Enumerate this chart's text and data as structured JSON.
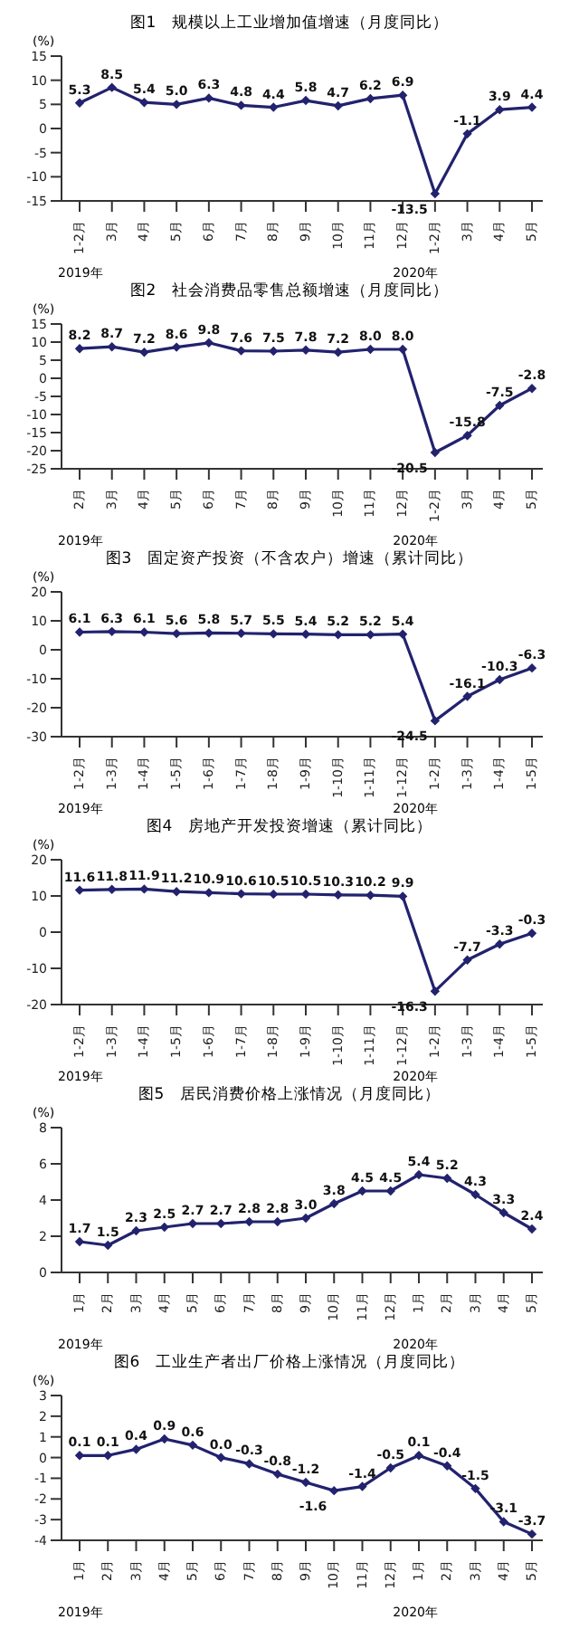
{
  "chart_data": [
    {
      "type": "line",
      "title": "图1　规模以上工业增加值增速（月度同比）",
      "ylabel": "(%)",
      "categories": [
        "1-2月",
        "3月",
        "4月",
        "5月",
        "6月",
        "7月",
        "8月",
        "9月",
        "10月",
        "11月",
        "12月",
        "1-2月",
        "3月",
        "4月",
        "5月"
      ],
      "values": [
        5.3,
        8.5,
        5.4,
        5.0,
        6.3,
        4.8,
        4.4,
        5.8,
        4.7,
        6.2,
        6.9,
        -13.5,
        -1.1,
        3.9,
        4.4
      ],
      "value_labels": [
        "5.3",
        "8.5",
        "5.4",
        "5.0",
        "6.3",
        "4.8",
        "4.4",
        "5.8",
        "4.7",
        "6.2",
        "6.9",
        "-13.5",
        "-1.1",
        "3.9",
        "4.4"
      ],
      "color": "#22226e",
      "ylim": [
        -15,
        15
      ],
      "yticks": [
        -15,
        -10,
        -5,
        0,
        5,
        10,
        15
      ],
      "marker": "diamond",
      "annotations": [
        "2019年",
        "2020年"
      ]
    },
    {
      "type": "line",
      "title": "图2　社会消费品零售总额增速（月度同比）",
      "ylabel": "(%)",
      "categories": [
        "2月",
        "3月",
        "4月",
        "5月",
        "6月",
        "7月",
        "8月",
        "9月",
        "10月",
        "11月",
        "12月",
        "1-2月",
        "3月",
        "4月",
        "5月"
      ],
      "values": [
        8.2,
        8.7,
        7.2,
        8.6,
        9.8,
        7.6,
        7.5,
        7.8,
        7.2,
        8.0,
        8.0,
        -20.5,
        -15.8,
        -7.5,
        -2.8
      ],
      "value_labels": [
        "8.2",
        "8.7",
        "7.2",
        "8.6",
        "9.8",
        "7.6",
        "7.5",
        "7.8",
        "7.2",
        "8.0",
        "8.0",
        "-20.5",
        "-15.8",
        "-7.5",
        "-2.8"
      ],
      "color": "#22226e",
      "ylim": [
        -25,
        15
      ],
      "yticks": [
        -25,
        -20,
        -15,
        -10,
        -5,
        0,
        5,
        10,
        15
      ],
      "marker": "diamond",
      "annotations": [
        "2019年",
        "2020年"
      ]
    },
    {
      "type": "line",
      "title": "图3　固定资产投资（不含农户）增速（累计同比）",
      "ylabel": "(%)",
      "categories": [
        "1-2月",
        "1-3月",
        "1-4月",
        "1-5月",
        "1-6月",
        "1-7月",
        "1-8月",
        "1-9月",
        "1-10月",
        "1-11月",
        "1-12月",
        "1-2月",
        "1-3月",
        "1-4月",
        "1-5月"
      ],
      "values": [
        6.1,
        6.3,
        6.1,
        5.6,
        5.8,
        5.7,
        5.5,
        5.4,
        5.2,
        5.2,
        5.4,
        -24.5,
        -16.1,
        -10.3,
        -6.3
      ],
      "value_labels": [
        "6.1",
        "6.3",
        "6.1",
        "5.6",
        "5.8",
        "5.7",
        "5.5",
        "5.4",
        "5.2",
        "5.2",
        "5.4",
        "-24.5",
        "-16.1",
        "-10.3",
        "-6.3"
      ],
      "color": "#22226e",
      "ylim": [
        -30,
        20
      ],
      "yticks": [
        -30,
        -20,
        -10,
        0,
        10,
        20
      ],
      "marker": "diamond",
      "annotations": [
        "2019年",
        "2020年"
      ]
    },
    {
      "type": "line",
      "title": "图4　房地产开发投资增速（累计同比）",
      "ylabel": "(%)",
      "categories": [
        "1-2月",
        "1-3月",
        "1-4月",
        "1-5月",
        "1-6月",
        "1-7月",
        "1-8月",
        "1-9月",
        "1-10月",
        "1-11月",
        "1-12月",
        "1-2月",
        "1-3月",
        "1-4月",
        "1-5月"
      ],
      "values": [
        11.6,
        11.8,
        11.9,
        11.2,
        10.9,
        10.6,
        10.5,
        10.5,
        10.3,
        10.2,
        9.9,
        -16.3,
        -7.7,
        -3.3,
        -0.3
      ],
      "value_labels": [
        "11.6",
        "11.8",
        "11.9",
        "11.2",
        "10.9",
        "10.6",
        "10.5",
        "10.5",
        "10.3",
        "10.2",
        "9.9",
        "-16.3",
        "-7.7",
        "-3.3",
        "-0.3"
      ],
      "color": "#22226e",
      "ylim": [
        -20,
        20
      ],
      "yticks": [
        -20,
        -10,
        0,
        10,
        20
      ],
      "marker": "diamond",
      "annotations": [
        "2019年",
        "2020年"
      ]
    },
    {
      "type": "line",
      "title": "图5　居民消费价格上涨情况（月度同比）",
      "ylabel": "(%)",
      "categories": [
        "1月",
        "2月",
        "3月",
        "4月",
        "5月",
        "6月",
        "7月",
        "8月",
        "9月",
        "10月",
        "11月",
        "12月",
        "1月",
        "2月",
        "3月",
        "4月",
        "5月"
      ],
      "values": [
        1.7,
        1.5,
        2.3,
        2.5,
        2.7,
        2.7,
        2.8,
        2.8,
        3.0,
        3.8,
        4.5,
        4.5,
        5.4,
        5.2,
        4.3,
        3.3,
        2.4
      ],
      "value_labels": [
        "1.7",
        "1.5",
        "2.3",
        "2.5",
        "2.7",
        "2.7",
        "2.8",
        "2.8",
        "3.0",
        "3.8",
        "4.5",
        "4.5",
        "5.4",
        "5.2",
        "4.3",
        "3.3",
        "2.4"
      ],
      "color": "#22226e",
      "ylim": [
        0,
        8
      ],
      "yticks": [
        0,
        2,
        4,
        6,
        8
      ],
      "marker": "diamond",
      "annotations": [
        "2019年",
        "2020年"
      ]
    },
    {
      "type": "line",
      "title": "图6　工业生产者出厂价格上涨情况（月度同比）",
      "ylabel": "(%)",
      "categories": [
        "1月",
        "2月",
        "3月",
        "4月",
        "5月",
        "6月",
        "7月",
        "8月",
        "9月",
        "10月",
        "11月",
        "12月",
        "1月",
        "2月",
        "3月",
        "4月",
        "5月"
      ],
      "values": [
        0.1,
        0.1,
        0.4,
        0.9,
        0.6,
        0.0,
        -0.3,
        -0.8,
        -1.2,
        -1.6,
        -1.4,
        -0.5,
        0.1,
        -0.4,
        -1.5,
        -3.1,
        -3.7
      ],
      "value_labels": [
        "0.1",
        "0.1",
        "0.4",
        "0.9",
        "0.6",
        "0.0",
        "-0.3",
        "-0.8",
        "-1.2",
        "-1.6",
        "-1.4",
        "-0.5",
        "0.1",
        "-0.4",
        "-1.5",
        "-3.1",
        "-3.7"
      ],
      "color": "#22226e",
      "ylim": [
        -4,
        3
      ],
      "yticks": [
        -4,
        -3,
        -2,
        -1,
        0,
        1,
        2,
        3
      ],
      "marker": "diamond",
      "annotations": [
        "2019年",
        "2020年"
      ]
    }
  ]
}
